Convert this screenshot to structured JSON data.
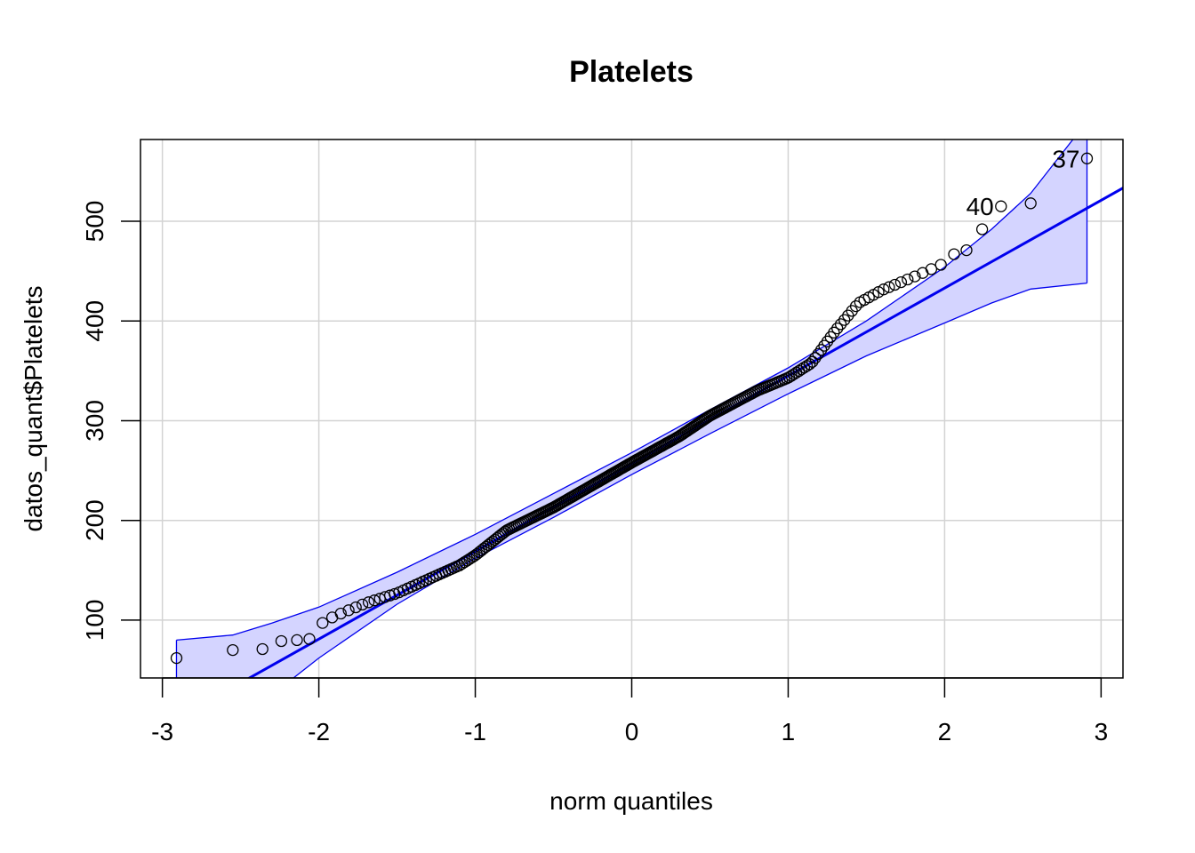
{
  "chart_data": {
    "type": "scatter",
    "title": "Platelets",
    "xlabel": "norm quantiles",
    "ylabel": "datos_quant$Platelets",
    "xlim": [
      -3.14,
      3.14
    ],
    "ylim": [
      42,
      582
    ],
    "xticks": [
      "-3",
      "-2",
      "-1",
      "0",
      "1",
      "2",
      "3"
    ],
    "yticks": [
      "100",
      "200",
      "300",
      "400",
      "500"
    ],
    "grid": true,
    "colors": {
      "points": "#000000",
      "line": "#0000ee",
      "band_fill": "#d4d4ff",
      "band_edge": "#0000ee",
      "grid": "#d3d3d3"
    },
    "reference_line": {
      "intercept": 257,
      "slope": 88
    },
    "n_points": 270,
    "points_extra": [
      {
        "x": -2.91,
        "y": 62
      },
      {
        "x": -2.55,
        "y": 70
      },
      {
        "x": -2.36,
        "y": 71
      },
      {
        "x": -2.24,
        "y": 79
      },
      {
        "x": -2.14,
        "y": 80
      },
      {
        "x": -2.06,
        "y": 81
      },
      {
        "x": 2.06,
        "y": 467
      },
      {
        "x": 2.14,
        "y": 471
      },
      {
        "x": 2.24,
        "y": 492
      },
      {
        "x": 2.36,
        "y": 515
      },
      {
        "x": 2.55,
        "y": 518
      },
      {
        "x": 2.91,
        "y": 563
      }
    ],
    "labels": [
      {
        "text": "37",
        "x": 2.91,
        "y": 563
      },
      {
        "text": "40",
        "x": 2.36,
        "y": 515
      }
    ],
    "band": {
      "x": [
        -2.91,
        -2.55,
        -2.3,
        -2.0,
        -1.5,
        -1.0,
        -0.5,
        0,
        0.5,
        1.0,
        1.5,
        2.0,
        2.3,
        2.55,
        2.91
      ],
      "upper": [
        80,
        85,
        97,
        113,
        148,
        186,
        227,
        268,
        311,
        353,
        400,
        454,
        492,
        528,
        600
      ],
      "lower": [
        -20,
        5,
        25,
        62,
        116,
        162,
        203,
        246,
        287,
        327,
        365,
        398,
        418,
        432,
        438
      ]
    }
  }
}
